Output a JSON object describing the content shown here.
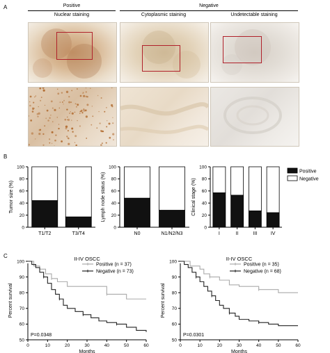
{
  "panels": {
    "a": "A",
    "b": "B",
    "c": "C"
  },
  "header": {
    "positive": "Positive",
    "negative": "Negative",
    "nuclear": "Nuclear staining",
    "cytoplasmic": "Cytoplasmic staining",
    "undetectable": "Undetectable staining"
  },
  "colors": {
    "positive_bar": "#111111",
    "negative_bar": "#ffffff",
    "positive_line": "#aaaaaa",
    "negative_line": "#222222",
    "roi_box": "#b0202a",
    "tissue_base": "#e8e0d2",
    "tissue_stain": "#b06a2e"
  },
  "chart_data": [
    {
      "type": "bar",
      "stacked": true,
      "categories": [
        "T1/T2",
        "T3/T4"
      ],
      "series": [
        {
          "name": "Positive",
          "values": [
            44,
            17
          ]
        },
        {
          "name": "Negative",
          "values": [
            56,
            83
          ]
        }
      ],
      "ylabel": "Tumor size (%)",
      "ylim": [
        0,
        100
      ],
      "yticks": [
        0,
        20,
        40,
        60,
        80,
        100
      ]
    },
    {
      "type": "bar",
      "stacked": true,
      "categories": [
        "N0",
        "N1/N2/N3"
      ],
      "series": [
        {
          "name": "Positive",
          "values": [
            48,
            28
          ]
        },
        {
          "name": "Negative",
          "values": [
            52,
            72
          ]
        }
      ],
      "ylabel": "Lymph node status (%)",
      "ylim": [
        0,
        100
      ],
      "yticks": [
        0,
        20,
        40,
        60,
        80,
        100
      ]
    },
    {
      "type": "bar",
      "stacked": true,
      "categories": [
        "I",
        "II",
        "III",
        "IV"
      ],
      "series": [
        {
          "name": "Positive",
          "values": [
            57,
            53,
            27,
            24
          ]
        },
        {
          "name": "Negative",
          "values": [
            43,
            47,
            73,
            76
          ]
        }
      ],
      "ylabel": "Clinical stage (%)",
      "ylim": [
        0,
        100
      ],
      "yticks": [
        0,
        20,
        40,
        60,
        80,
        100
      ],
      "legend": [
        "Positive",
        "Negative"
      ],
      "legend_position": "right"
    },
    {
      "type": "line",
      "style": "step",
      "title": "II-IV OSCC",
      "xlabel": "Months",
      "ylabel": "Percent survival",
      "xlim": [
        0,
        60
      ],
      "ylim": [
        50,
        100
      ],
      "xticks": [
        0,
        10,
        20,
        30,
        40,
        50,
        60
      ],
      "yticks": [
        50,
        60,
        70,
        80,
        90,
        100
      ],
      "annotation": "P=0.0348",
      "series": [
        {
          "name": "Positive (n = 37)",
          "x": [
            0,
            3,
            6,
            9,
            12,
            15,
            20,
            25,
            40,
            50,
            60
          ],
          "y": [
            100,
            97,
            95,
            92,
            89,
            87,
            84,
            84,
            79,
            76,
            76
          ]
        },
        {
          "name": "Negative (n = 73)",
          "x": [
            0,
            2,
            4,
            6,
            8,
            10,
            12,
            14,
            16,
            18,
            20,
            24,
            28,
            32,
            36,
            40,
            45,
            50,
            55,
            60
          ],
          "y": [
            100,
            98,
            96,
            93,
            90,
            86,
            82,
            79,
            76,
            72,
            70,
            68,
            66,
            64,
            62,
            61,
            60,
            58,
            56,
            55
          ]
        }
      ]
    },
    {
      "type": "line",
      "style": "step",
      "title": "II-IV OSCC",
      "xlabel": "Months",
      "ylabel": "Percent survival",
      "xlim": [
        0,
        60
      ],
      "ylim": [
        50,
        100
      ],
      "xticks": [
        0,
        10,
        20,
        30,
        40,
        50,
        60
      ],
      "yticks": [
        50,
        60,
        70,
        80,
        90,
        100
      ],
      "annotation": "P=0.0301",
      "series": [
        {
          "name": "Positive (n = 35)",
          "x": [
            0,
            5,
            10,
            12,
            15,
            20,
            25,
            30,
            40,
            50,
            60
          ],
          "y": [
            100,
            97,
            95,
            92,
            90,
            88,
            85,
            84,
            82,
            80,
            80
          ]
        },
        {
          "name": "Negative (n = 68)",
          "x": [
            0,
            2,
            4,
            6,
            8,
            10,
            12,
            14,
            16,
            18,
            20,
            22,
            25,
            28,
            30,
            35,
            40,
            45,
            50,
            60
          ],
          "y": [
            100,
            98,
            96,
            93,
            90,
            87,
            84,
            81,
            78,
            75,
            72,
            70,
            67,
            65,
            63,
            62,
            61,
            60,
            59,
            59
          ]
        }
      ]
    }
  ]
}
